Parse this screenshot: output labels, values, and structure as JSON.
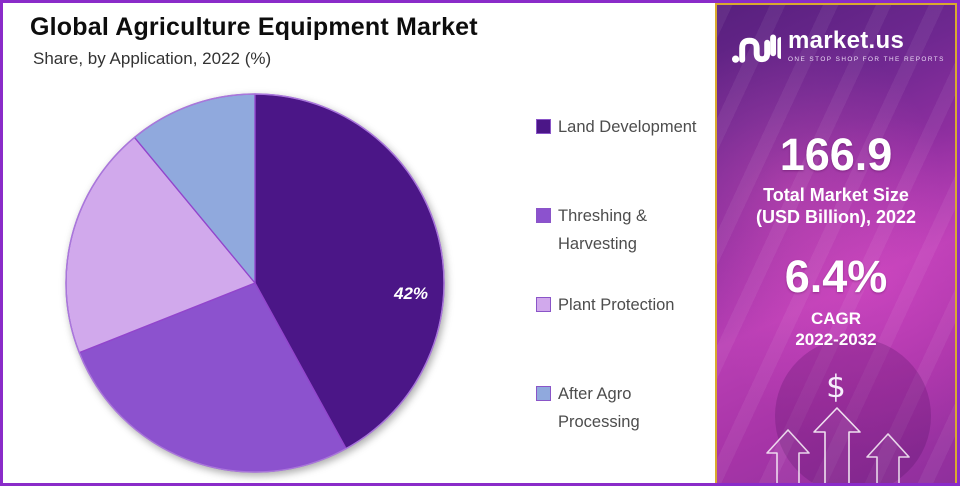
{
  "frame": {
    "outer_border_color": "#8A2BC9",
    "panel_border_color": "#D9A92E"
  },
  "header": {
    "title": "Global Agriculture Equipment Market",
    "subtitle": "Share, by Application, 2022 (%)"
  },
  "chart_data": {
    "type": "pie",
    "title": "Global Agriculture Equipment Market Share, by Application, 2022 (%)",
    "categories": [
      "Land Development",
      "Threshing & Harvesting",
      "Plant Protection",
      "After Agro Processing"
    ],
    "values": [
      42,
      27,
      20,
      11
    ],
    "unit": "%",
    "colors": [
      "#4B1687",
      "#8C52CE",
      "#D1A9EC",
      "#90A9DD"
    ],
    "slice_stroke": "#9245CC",
    "start_angle_deg": 0,
    "direction": "clockwise",
    "legend_position": "right",
    "labels_shown": [
      {
        "category": "Land Development",
        "text": "42%"
      }
    ]
  },
  "sidebar": {
    "logo": {
      "brand": "market.us",
      "tagline": "ONE STOP SHOP FOR THE REPORTS",
      "icon": "marketus-m-glyph"
    },
    "stats": [
      {
        "value": "166.9",
        "label_line1": "Total Market Size",
        "label_line2": "(USD Billion), 2022"
      },
      {
        "value": "6.4%",
        "label_line1": "CAGR",
        "label_line2": "2022-2032"
      }
    ],
    "dollar_symbol": "$",
    "decor": [
      "growth-arrows-up"
    ]
  }
}
